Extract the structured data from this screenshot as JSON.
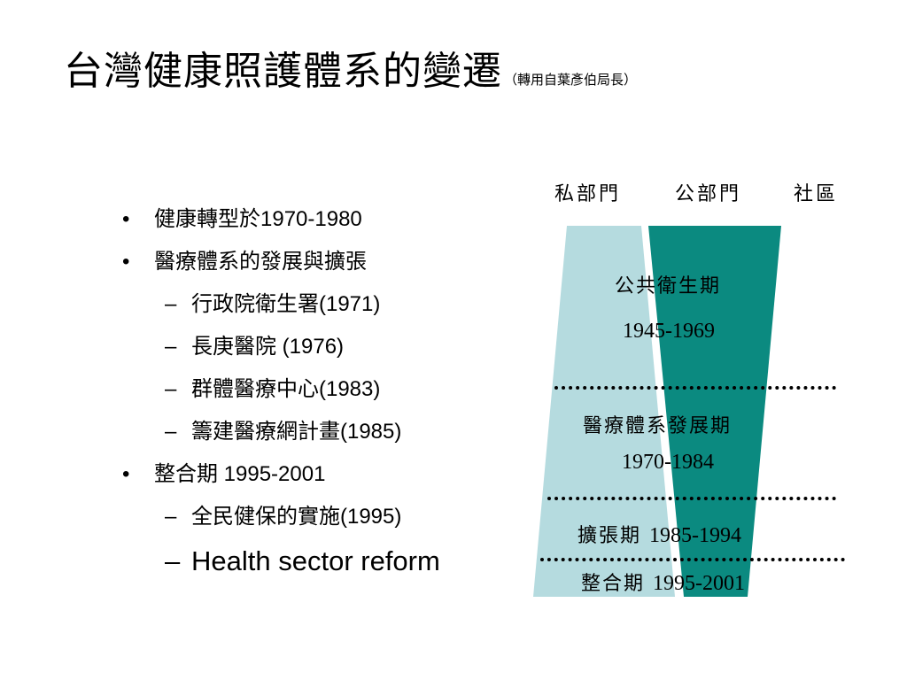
{
  "slide": {
    "title": "台灣健康照護體系的變遷",
    "title_note": "（轉用自葉彥伯局長）"
  },
  "bullets": [
    {
      "level": 1,
      "marker": "•",
      "text": "健康轉型於1970-1980"
    },
    {
      "level": 1,
      "marker": "•",
      "text": "醫療體系的發展與擴張"
    },
    {
      "level": 2,
      "marker": "–",
      "text": "行政院衛生署(1971)"
    },
    {
      "level": 2,
      "marker": "–",
      "text": "長庚醫院 (1976)"
    },
    {
      "level": 2,
      "marker": "–",
      "text": "群體醫療中心(1983)"
    },
    {
      "level": 2,
      "marker": "–",
      "text": "籌建醫療網計畫(1985)"
    },
    {
      "level": 1,
      "marker": "•",
      "text": "整合期 1995-2001"
    },
    {
      "level": 2,
      "marker": "–",
      "text": "全民健保的實施(1995)"
    },
    {
      "level": 2,
      "marker": "–",
      "text": "Health sector reform"
    }
  ],
  "diagram": {
    "columns": [
      "私部門",
      "公部門",
      "社區"
    ],
    "colors": {
      "private_band": "#b5dbdf",
      "public_band": "#0b8a80",
      "divider": "#ffffff",
      "dotted_line": "#000000"
    },
    "periods": [
      {
        "name": "公共衛生期",
        "years": "1945-1969"
      },
      {
        "name": "醫療體系發展期",
        "years": "1970-1984"
      },
      {
        "name": "擴張期",
        "years": "1985-1994"
      },
      {
        "name": "整合期",
        "years": "1995-2001"
      }
    ]
  }
}
